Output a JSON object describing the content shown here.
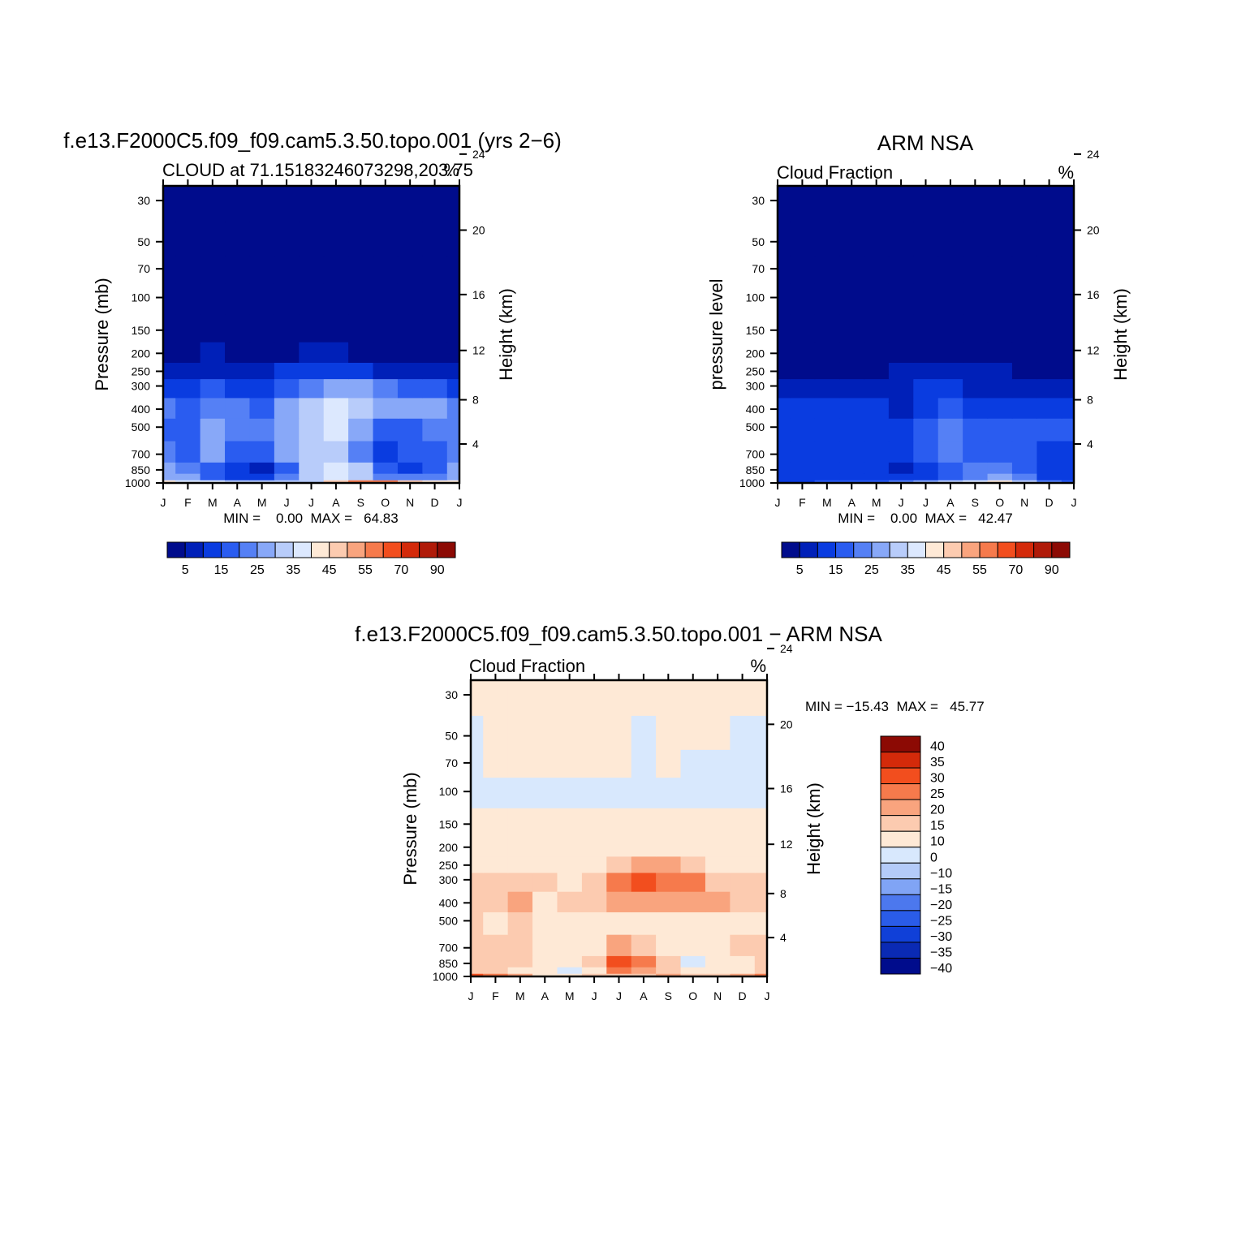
{
  "figure": {
    "panels": [
      {
        "id": "model",
        "title": "f.e13.F2000C5.f09_f09.cam5.3.50.topo.001 (yrs 2−6)",
        "left_string": "CLOUD at 71.15183246073298,203.75",
        "right_string": "%",
        "ylabel_left": "Pressure (mb)",
        "ylabel_right": "Height (km)",
        "stats": "MIN =    0.00  MAX =   64.83"
      },
      {
        "id": "obs",
        "title": "ARM NSA",
        "left_string": "Cloud Fraction",
        "right_string": "%",
        "ylabel_left": "pressure level",
        "ylabel_right": "Height (km)",
        "stats": "MIN =    0.00  MAX =   42.47"
      },
      {
        "id": "diff",
        "title": "f.e13.F2000C5.f09_f09.cam5.3.50.topo.001 − ARM NSA",
        "left_string": "Cloud Fraction",
        "right_string": "%",
        "ylabel_left": "Pressure (mb)",
        "ylabel_right": "Height (km)",
        "stats": "MIN = −15.43  MAX =   45.77"
      }
    ],
    "colorbar_abs": {
      "colors": [
        "#000c8c",
        "#0020b8",
        "#0a3ce0",
        "#2a5cf0",
        "#5580f5",
        "#88a8f8",
        "#b8ccfa",
        "#dce8fe",
        "#fee9d6",
        "#fccbb0",
        "#f9a47e",
        "#f67a4c",
        "#f24e1e",
        "#d42a0a",
        "#b01a08",
        "#8c0a04"
      ],
      "labels": [
        "5",
        "15",
        "25",
        "35",
        "45",
        "55",
        "70",
        "90"
      ]
    },
    "colorbar_diff": {
      "colors": [
        "#000c8c",
        "#0a2ab4",
        "#1040d8",
        "#2a5ce8",
        "#4c78ee",
        "#80a4f5",
        "#b4cbf9",
        "#d8e8fd",
        "#fee9d6",
        "#fccbb0",
        "#f9a47e",
        "#f67a4c",
        "#f24e1e",
        "#d42a0a",
        "#8c0a04"
      ],
      "labels": [
        "40",
        "35",
        "30",
        "25",
        "20",
        "15",
        "10",
        "0",
        "−10",
        "−15",
        "−20",
        "−25",
        "−30",
        "−35",
        "−40"
      ]
    }
  },
  "chart_data": [
    {
      "type": "heatmap",
      "title": "f.e13.F2000C5.f09_f09.cam5.3.50.topo.001 (yrs 2−6)",
      "subtitle": "CLOUD at 71.15183246073298,203.75",
      "units": "%",
      "ylabel": "Pressure (mb)",
      "y2label": "Height (km)",
      "x_ticks": [
        "J",
        "F",
        "M",
        "A",
        "M",
        "J",
        "J",
        "A",
        "S",
        "O",
        "N",
        "D",
        "J"
      ],
      "y_ticks": [
        30,
        50,
        70,
        100,
        150,
        200,
        250,
        300,
        400,
        500,
        700,
        850,
        1000
      ],
      "y2_ticks": [
        24,
        20,
        16,
        12,
        8,
        4
      ],
      "y_scale": "log",
      "ylim": [
        1000,
        25
      ],
      "levels": [
        5,
        10,
        15,
        20,
        25,
        30,
        35,
        40,
        45,
        50,
        55,
        60,
        70,
        80,
        90
      ],
      "min": 0.0,
      "max": 64.83,
      "rows_pressure": [
        1000,
        925,
        850,
        700,
        500,
        400,
        300,
        250,
        200,
        150,
        100,
        70,
        50,
        30
      ],
      "values": [
        [
          40,
          38,
          35,
          30,
          30,
          32,
          30,
          45,
          55,
          55,
          45,
          40,
          40
        ],
        [
          28,
          25,
          18,
          12,
          10,
          22,
          33,
          37,
          32,
          23,
          20,
          23,
          28
        ],
        [
          25,
          20,
          15,
          10,
          8,
          15,
          30,
          35,
          30,
          15,
          12,
          18,
          25
        ],
        [
          22,
          18,
          28,
          15,
          15,
          25,
          30,
          33,
          22,
          12,
          15,
          18,
          20
        ],
        [
          18,
          15,
          25,
          20,
          20,
          25,
          30,
          35,
          25,
          18,
          18,
          22,
          20
        ],
        [
          20,
          15,
          20,
          20,
          18,
          25,
          30,
          37,
          30,
          25,
          25,
          25,
          20
        ],
        [
          12,
          12,
          15,
          12,
          10,
          15,
          22,
          25,
          25,
          22,
          15,
          15,
          12
        ],
        [
          8,
          8,
          8,
          7,
          5,
          10,
          12,
          12,
          10,
          8,
          5,
          8,
          8
        ],
        [
          4,
          4,
          5,
          3,
          3,
          4,
          5,
          5,
          4,
          4,
          3,
          4,
          4
        ],
        [
          2,
          2,
          2,
          2,
          2,
          2,
          2,
          2,
          2,
          2,
          2,
          2,
          2
        ],
        [
          1,
          1,
          1,
          1,
          1,
          1,
          1,
          1,
          1,
          1,
          1,
          1,
          1
        ],
        [
          1,
          1,
          1,
          1,
          1,
          1,
          1,
          1,
          1,
          1,
          1,
          1,
          1
        ],
        [
          1,
          1,
          1,
          1,
          1,
          1,
          1,
          1,
          1,
          1,
          1,
          1,
          1
        ],
        [
          1,
          1,
          1,
          1,
          1,
          1,
          1,
          1,
          1,
          1,
          1,
          1,
          1
        ]
      ]
    },
    {
      "type": "heatmap",
      "title": "ARM NSA",
      "subtitle": "Cloud Fraction",
      "units": "%",
      "ylabel": "pressure level",
      "y2label": "Height (km)",
      "x_ticks": [
        "J",
        "F",
        "M",
        "A",
        "M",
        "J",
        "J",
        "A",
        "S",
        "O",
        "N",
        "D",
        "J"
      ],
      "y_ticks": [
        30,
        50,
        70,
        100,
        150,
        200,
        250,
        300,
        400,
        500,
        700,
        850,
        1000
      ],
      "y2_ticks": [
        24,
        20,
        16,
        12,
        8,
        4
      ],
      "y_scale": "log",
      "ylim": [
        1000,
        25
      ],
      "levels": [
        5,
        10,
        15,
        20,
        25,
        30,
        35,
        40,
        45,
        50,
        55,
        60,
        70,
        80,
        90
      ],
      "min": 0.0,
      "max": 42.47,
      "rows_pressure": [
        1000,
        925,
        850,
        700,
        500,
        400,
        300,
        250,
        200,
        150,
        100,
        70,
        50,
        30
      ],
      "values": [
        [
          12,
          14,
          16,
          18,
          18,
          20,
          25,
          30,
          35,
          42,
          30,
          20,
          15
        ],
        [
          12,
          12,
          10,
          12,
          12,
          10,
          14,
          18,
          22,
          25,
          20,
          14,
          12
        ],
        [
          12,
          12,
          10,
          14,
          14,
          8,
          14,
          18,
          20,
          20,
          18,
          12,
          12
        ],
        [
          12,
          12,
          10,
          12,
          14,
          10,
          18,
          20,
          18,
          18,
          16,
          12,
          12
        ],
        [
          13,
          13,
          13,
          14,
          13,
          10,
          16,
          20,
          18,
          16,
          15,
          16,
          15
        ],
        [
          10,
          12,
          12,
          12,
          12,
          8,
          14,
          16,
          14,
          14,
          12,
          14,
          13
        ],
        [
          7,
          7,
          7,
          8,
          9,
          9,
          11,
          11,
          9,
          8,
          8,
          9,
          8
        ],
        [
          3,
          3,
          3,
          4,
          4,
          5,
          5,
          6,
          5,
          5,
          4,
          4,
          4
        ],
        [
          2,
          2,
          2,
          2,
          2,
          2,
          2,
          2,
          2,
          2,
          2,
          2,
          2
        ],
        [
          1,
          1,
          1,
          1,
          1,
          1,
          1,
          1,
          1,
          1,
          1,
          1,
          1
        ],
        [
          1,
          1,
          1,
          1,
          1,
          1,
          1,
          1,
          1,
          1,
          1,
          1,
          1
        ],
        [
          1,
          1,
          1,
          1,
          1,
          1,
          1,
          1,
          1,
          1,
          1,
          1,
          1
        ],
        [
          1,
          1,
          1,
          1,
          1,
          1,
          1,
          1,
          1,
          1,
          1,
          1,
          1
        ],
        [
          1,
          1,
          1,
          1,
          1,
          1,
          1,
          1,
          1,
          1,
          1,
          1,
          1
        ]
      ]
    },
    {
      "type": "heatmap",
      "title": "f.e13.F2000C5.f09_f09.cam5.3.50.topo.001 − ARM NSA",
      "subtitle": "Cloud Fraction",
      "units": "%",
      "ylabel": "Pressure (mb)",
      "y2label": "Height (km)",
      "x_ticks": [
        "J",
        "F",
        "M",
        "A",
        "M",
        "J",
        "J",
        "A",
        "S",
        "O",
        "N",
        "D",
        "J"
      ],
      "y_ticks": [
        30,
        50,
        70,
        100,
        150,
        200,
        250,
        300,
        400,
        500,
        700,
        850,
        1000
      ],
      "y2_ticks": [
        24,
        20,
        16,
        12,
        8,
        4
      ],
      "y_scale": "log",
      "ylim": [
        1000,
        25
      ],
      "levels": [
        -40,
        -35,
        -30,
        -25,
        -20,
        -15,
        -10,
        0,
        10,
        15,
        20,
        25,
        30,
        35,
        40
      ],
      "min": -15.43,
      "max": 45.77,
      "rows_pressure": [
        1000,
        925,
        850,
        700,
        500,
        400,
        300,
        250,
        200,
        150,
        100,
        70,
        50,
        30
      ],
      "values": [
        [
          28,
          22,
          16,
          8,
          8,
          10,
          12,
          14,
          16,
          12,
          12,
          16,
          20
        ],
        [
          14,
          12,
          8,
          2,
          -3,
          8,
          20,
          18,
          12,
          4,
          2,
          8,
          14
        ],
        [
          14,
          12,
          12,
          5,
          5,
          12,
          25,
          20,
          12,
          -2,
          4,
          8,
          14
        ],
        [
          12,
          10,
          14,
          5,
          5,
          8,
          15,
          14,
          6,
          4,
          6,
          12,
          10
        ],
        [
          10,
          9,
          14,
          8,
          5,
          8,
          7,
          8,
          6,
          6,
          7,
          9,
          8
        ],
        [
          11,
          10,
          15,
          9,
          10,
          14,
          15,
          18,
          17,
          16,
          18,
          12,
          12
        ],
        [
          10,
          12,
          12,
          10,
          9,
          14,
          22,
          26,
          22,
          21,
          14,
          12,
          10
        ],
        [
          5,
          5,
          5,
          5,
          5,
          8,
          14,
          15,
          15,
          12,
          5,
          5,
          5
        ],
        [
          5,
          5,
          5,
          5,
          5,
          5,
          5,
          5,
          5,
          5,
          5,
          5,
          5
        ],
        [
          5,
          5,
          5,
          3,
          5,
          5,
          5,
          5,
          5,
          5,
          5,
          5,
          5
        ],
        [
          -3,
          -3,
          -3,
          -3,
          -3,
          -3,
          -3,
          -3,
          -3,
          -3,
          -3,
          -3,
          -3
        ],
        [
          -3,
          5,
          5,
          5,
          5,
          5,
          5,
          -3,
          5,
          -3,
          -3,
          -3,
          -3
        ],
        [
          -3,
          5,
          5,
          5,
          5,
          5,
          5,
          -3,
          5,
          5,
          5,
          -3,
          -3
        ],
        [
          5,
          5,
          5,
          5,
          5,
          5,
          5,
          5,
          5,
          5,
          5,
          5,
          5
        ]
      ]
    }
  ]
}
